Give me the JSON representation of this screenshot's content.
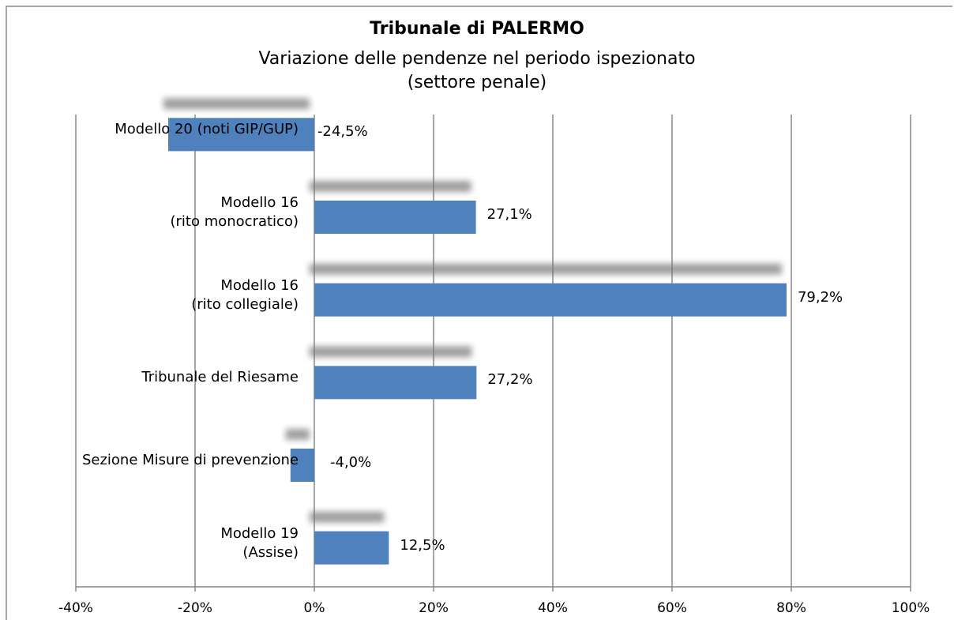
{
  "chart_data": {
    "type": "bar",
    "orientation": "horizontal",
    "title": "Tribunale di PALERMO",
    "subtitle": "Variazione delle pendenze nel periodo ispezionato\n(settore penale)",
    "categories": [
      "Modello 20 (noti GIP/GUP)",
      "Modello 16\n(rito monocratico)",
      "Modello 16\n(rito collegiale)",
      "Tribunale del Riesame",
      "Sezione Misure di prevenzione",
      "Modello 19\n(Assise)"
    ],
    "values": [
      -24.5,
      27.1,
      79.2,
      27.2,
      -4.0,
      12.5
    ],
    "value_labels": [
      "-24,5%",
      "27,1%",
      "79,2%",
      "27,2%",
      "-4,0%",
      "12,5%"
    ],
    "color": "#4f81bd",
    "xlim": [
      -40,
      100
    ],
    "xticks": [
      {
        "value": -40,
        "label": "-40%"
      },
      {
        "value": -20,
        "label": "-20%"
      },
      {
        "value": 0,
        "label": "0%"
      },
      {
        "value": 20,
        "label": "20%"
      },
      {
        "value": 40,
        "label": "40%"
      },
      {
        "value": 60,
        "label": "60%"
      },
      {
        "value": 80,
        "label": "80%"
      },
      {
        "value": 100,
        "label": "100%"
      }
    ],
    "grid": true
  }
}
